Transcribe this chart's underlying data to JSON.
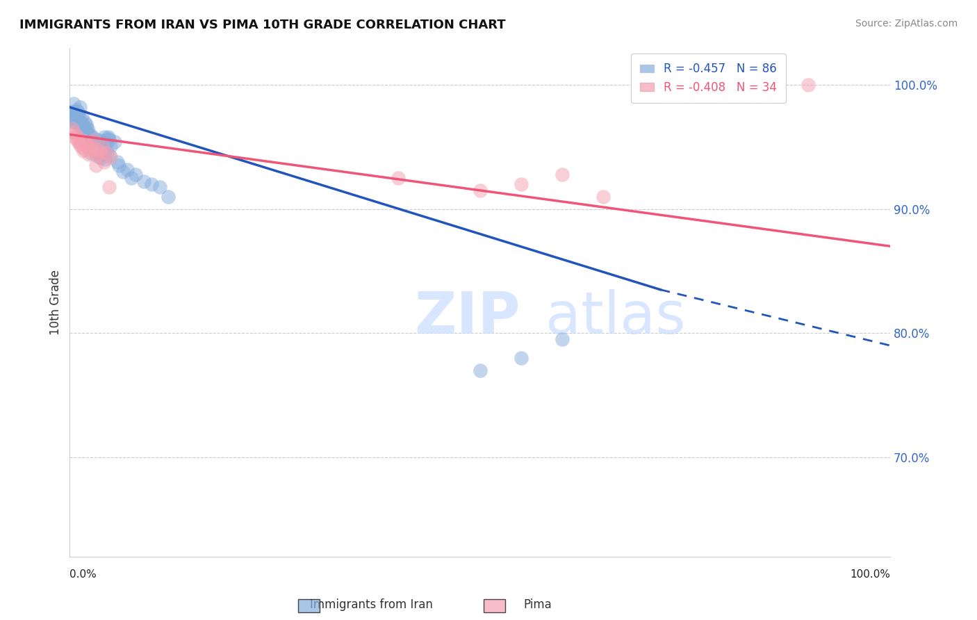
{
  "title": "IMMIGRANTS FROM IRAN VS PIMA 10TH GRADE CORRELATION CHART",
  "source": "Source: ZipAtlas.com",
  "ylabel": "10th Grade",
  "yticks": [
    100.0,
    90.0,
    80.0,
    70.0
  ],
  "ytick_labels": [
    "100.0%",
    "90.0%",
    "80.0%",
    "70.0%"
  ],
  "legend_blue_r": "R = -0.457",
  "legend_blue_n": "N = 86",
  "legend_pink_r": "R = -0.408",
  "legend_pink_n": "N = 34",
  "legend_label_blue": "Immigrants from Iran",
  "legend_label_pink": "Pima",
  "blue_color": "#85AEDD",
  "pink_color": "#F4A0B0",
  "trendline_blue": "#2255BB",
  "trendline_pink": "#EE5577",
  "xmin": 0,
  "xmax": 100,
  "ymin": 62,
  "ymax": 103,
  "trend_blue_x0": 0.0,
  "trend_blue_y0": 98.2,
  "trend_blue_solid_x1": 72.0,
  "trend_blue_solid_y1": 83.5,
  "trend_blue_dash_x1": 100.0,
  "trend_blue_dash_y1": 79.0,
  "trend_pink_x0": 0.0,
  "trend_pink_y0": 96.0,
  "trend_pink_x1": 100.0,
  "trend_pink_y1": 87.0,
  "blue_scatter_x": [
    0.5,
    0.8,
    1.0,
    1.2,
    1.5,
    1.8,
    2.0,
    2.2,
    2.5,
    2.8,
    3.0,
    3.2,
    3.5,
    3.8,
    4.0,
    4.2,
    4.5,
    4.8,
    5.0,
    5.5,
    0.3,
    0.6,
    0.9,
    1.1,
    1.4,
    1.6,
    1.9,
    2.1,
    2.4,
    2.7,
    3.1,
    3.4,
    3.7,
    4.1,
    4.6,
    0.4,
    0.7,
    1.3,
    1.7,
    2.3,
    2.6,
    3.3,
    3.6,
    3.9,
    4.3,
    4.7,
    4.9,
    6.0,
    7.0,
    8.0,
    0.15,
    0.25,
    0.35,
    0.45,
    0.55,
    0.65,
    0.75,
    0.85,
    1.05,
    1.25,
    1.45,
    1.65,
    1.85,
    2.05,
    2.25,
    2.45,
    2.65,
    2.85,
    3.05,
    3.25,
    3.45,
    3.65,
    3.85,
    4.05,
    4.25,
    4.55,
    10.0,
    5.8,
    6.5,
    7.5,
    9.0,
    11.0,
    12.0,
    50.0,
    55.0,
    60.0
  ],
  "blue_scatter_y": [
    98.5,
    98.0,
    97.8,
    98.2,
    97.5,
    97.0,
    96.8,
    96.5,
    96.0,
    95.8,
    95.5,
    95.2,
    95.0,
    95.5,
    95.2,
    95.8,
    95.3,
    95.6,
    95.1,
    95.4,
    97.2,
    97.8,
    97.3,
    97.6,
    96.5,
    96.8,
    96.2,
    96.4,
    95.6,
    95.3,
    94.8,
    95.1,
    95.4,
    94.9,
    95.7,
    97.0,
    97.5,
    96.9,
    96.3,
    95.9,
    94.5,
    95.6,
    94.2,
    95.3,
    94.6,
    95.8,
    94.3,
    93.5,
    93.2,
    92.8,
    97.8,
    97.6,
    97.4,
    97.3,
    97.1,
    97.0,
    97.2,
    97.4,
    97.5,
    96.7,
    96.9,
    96.6,
    96.3,
    96.1,
    95.7,
    95.5,
    95.2,
    95.0,
    94.7,
    94.5,
    94.8,
    94.3,
    94.1,
    95.2,
    94.0,
    94.6,
    92.0,
    93.8,
    93.0,
    92.5,
    92.2,
    91.8,
    91.0,
    77.0,
    78.0,
    79.5
  ],
  "pink_scatter_x": [
    0.5,
    0.8,
    1.1,
    1.4,
    1.7,
    2.0,
    2.3,
    2.6,
    2.9,
    3.2,
    3.8,
    4.2,
    4.8,
    5.0,
    0.3,
    0.6,
    0.9,
    1.2,
    1.5,
    1.8,
    2.1,
    2.4,
    2.7,
    3.0,
    3.3,
    3.6,
    4.0,
    4.5,
    40.0,
    50.0,
    55.0,
    60.0,
    65.0,
    90.0
  ],
  "pink_scatter_y": [
    96.2,
    95.9,
    95.4,
    95.0,
    94.7,
    95.2,
    94.4,
    94.8,
    95.6,
    93.5,
    94.5,
    93.8,
    91.8,
    94.2,
    96.5,
    95.8,
    95.5,
    95.2,
    95.6,
    94.8,
    95.3,
    94.9,
    95.1,
    94.6,
    94.3,
    94.7,
    95.0,
    94.5,
    92.5,
    91.5,
    92.0,
    92.8,
    91.0,
    100.0
  ]
}
